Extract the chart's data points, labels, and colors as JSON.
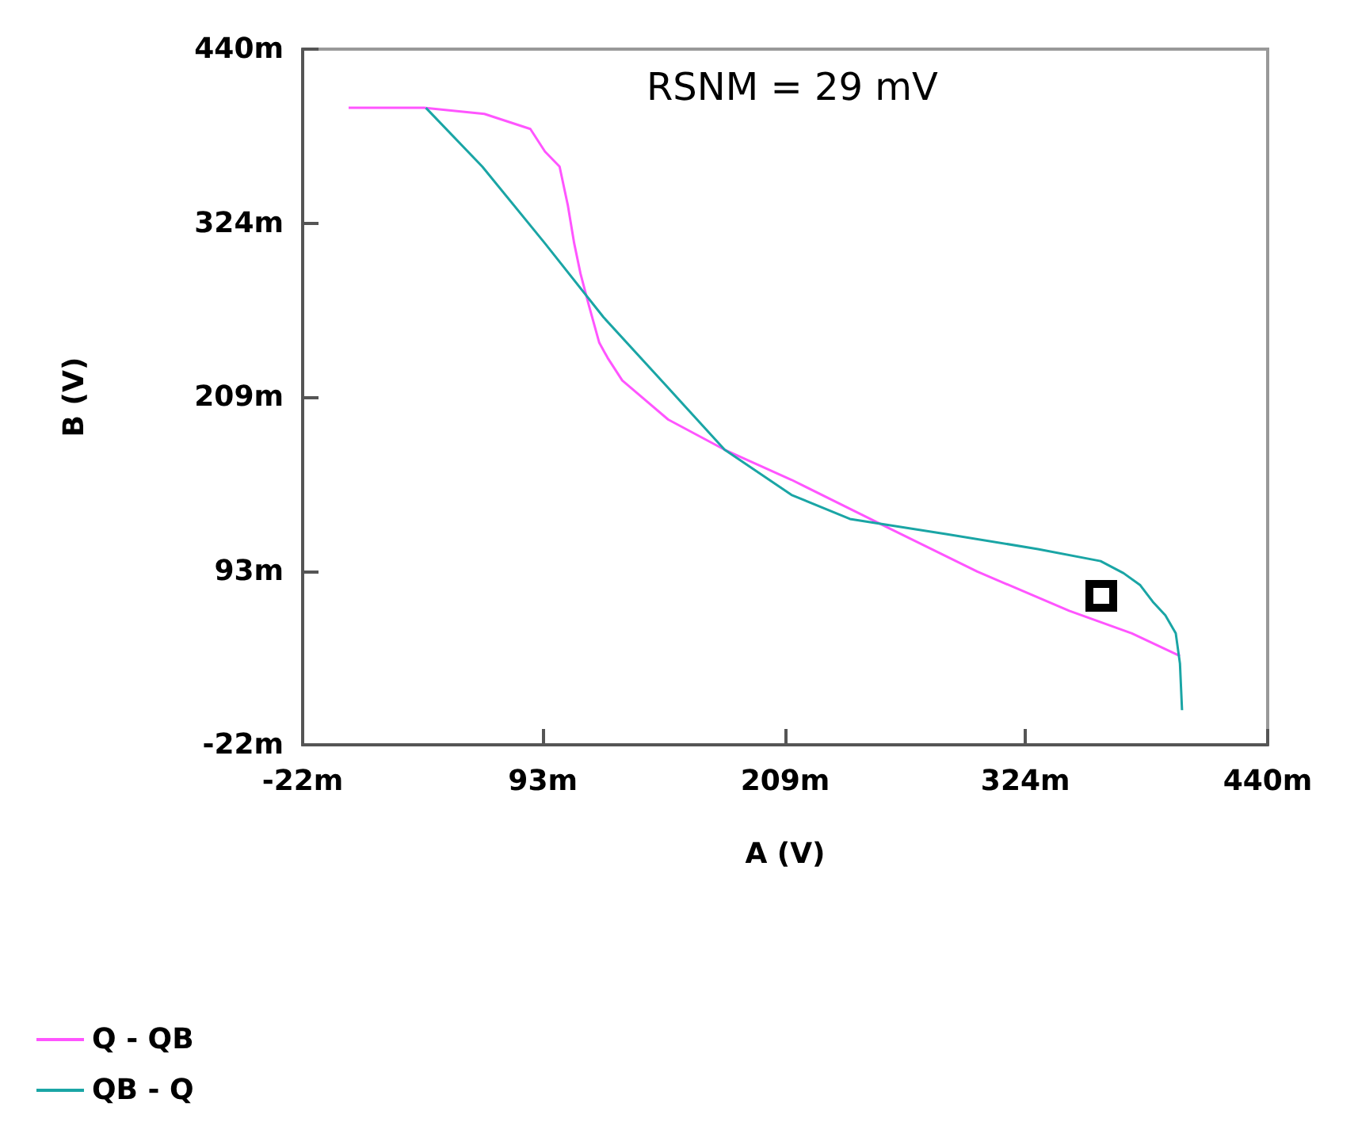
{
  "chart_data": {
    "type": "line",
    "xlabel": "A (V)",
    "ylabel": "B (V)",
    "annotations": [
      "RSNM = 29 mV"
    ],
    "xlim": [
      -22,
      440
    ],
    "ylim": [
      -22,
      440
    ],
    "xticks": [
      {
        "value": -22,
        "label": "-22m"
      },
      {
        "value": 93,
        "label": "93m"
      },
      {
        "value": 209,
        "label": "209m"
      },
      {
        "value": 324,
        "label": "324m"
      },
      {
        "value": 440,
        "label": "440m"
      }
    ],
    "yticks": [
      {
        "value": -22,
        "label": "-22m"
      },
      {
        "value": 93,
        "label": "93m"
      },
      {
        "value": 209,
        "label": "209m"
      },
      {
        "value": 324,
        "label": "324m"
      },
      {
        "value": 440,
        "label": "440m"
      }
    ],
    "grid": false,
    "legend": "bottom left",
    "marker": "none",
    "line_style": "solid",
    "series": [
      {
        "name": "Q - QB",
        "color": "#ff55ff",
        "x": [
          0,
          36,
          65,
          87,
          94,
          101,
          105,
          108,
          111,
          115,
          120,
          124,
          131,
          153,
          180,
          212,
          257,
          301,
          345,
          375,
          398
        ],
        "values": [
          401,
          401,
          397,
          387,
          372,
          362,
          336,
          311,
          291,
          270,
          245,
          235,
          220,
          194,
          174,
          154,
          123,
          93,
          67,
          52,
          37
        ]
      },
      {
        "name": "QB - Q",
        "color": "#1aa5a5",
        "x": [
          37,
          64,
          94,
          122,
          153,
          180,
          212,
          240,
          286,
          330,
          360,
          371,
          379,
          385,
          391,
          396,
          398,
          399
        ],
        "values": [
          401,
          362,
          311,
          262,
          215,
          174,
          144,
          128,
          118,
          108,
          100,
          92,
          84,
          73,
          64,
          52,
          32,
          1
        ]
      }
    ]
  }
}
